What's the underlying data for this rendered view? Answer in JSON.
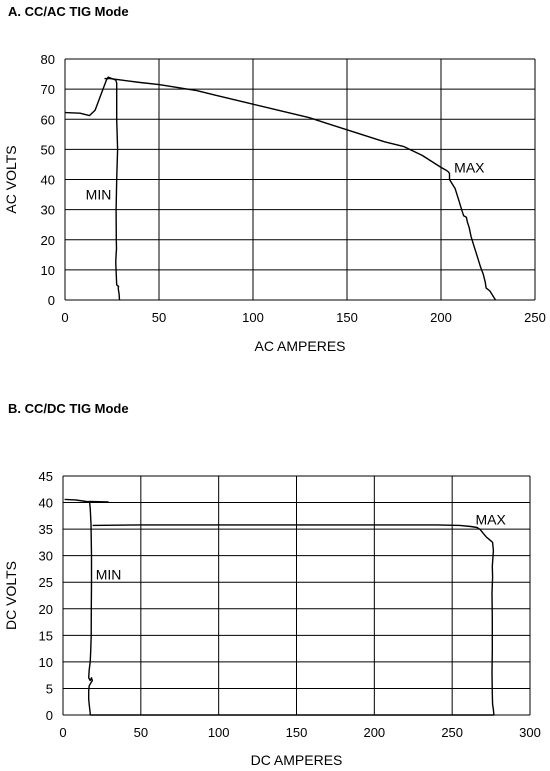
{
  "chart_data": [
    {
      "type": "line",
      "title": "A.  CC/AC TIG Mode",
      "xlabel": "AC AMPERES",
      "ylabel": "AC VOLTS",
      "xlim": [
        0,
        250
      ],
      "ylim": [
        0,
        80
      ],
      "xticks": [
        0,
        50,
        100,
        150,
        200,
        250
      ],
      "yticks": [
        0,
        10,
        20,
        30,
        40,
        50,
        60,
        70,
        80
      ],
      "grid": true,
      "annotations": [
        {
          "text": "MIN",
          "x": 11,
          "y": 35
        },
        {
          "text": "MAX",
          "x": 207,
          "y": 44
        }
      ],
      "series": [
        {
          "points": [
            [
              0,
              62.2
            ],
            [
              8,
              62
            ],
            [
              13,
              61.2
            ],
            [
              16,
              63
            ],
            [
              19,
              68
            ],
            [
              22,
              73
            ],
            [
              23,
              74
            ],
            [
              25,
              73.5
            ],
            [
              27,
              73
            ],
            [
              27.5,
              72
            ],
            [
              27.5,
              60
            ],
            [
              28,
              50
            ],
            [
              27.5,
              40
            ],
            [
              27.2,
              30
            ],
            [
              27.3,
              20
            ],
            [
              27.4,
              17
            ],
            [
              27.2,
              15
            ],
            [
              27,
              13
            ],
            [
              27,
              12
            ],
            [
              27.5,
              5
            ],
            [
              28.5,
              4.5
            ],
            [
              28.3,
              4
            ],
            [
              28.5,
              3
            ],
            [
              28.8,
              2
            ],
            [
              29,
              0
            ]
          ]
        },
        {
          "points": [
            [
              21,
              73.5
            ],
            [
              24,
              73.5
            ],
            [
              30,
              73
            ],
            [
              40,
              72.2
            ],
            [
              50,
              71.5
            ],
            [
              60,
              70.5
            ],
            [
              70,
              69.5
            ],
            [
              80,
              68
            ],
            [
              90,
              66.5
            ],
            [
              100,
              65
            ],
            [
              110,
              63.5
            ],
            [
              120,
              62
            ],
            [
              130,
              60.5
            ],
            [
              140,
              58.5
            ],
            [
              150,
              56.5
            ],
            [
              160,
              54.5
            ],
            [
              170,
              52.5
            ],
            [
              180,
              51
            ],
            [
              185,
              49.5
            ],
            [
              190,
              48
            ],
            [
              195,
              46
            ],
            [
              200,
              44
            ],
            [
              203,
              43
            ],
            [
              204,
              42.5
            ],
            [
              204.5,
              42
            ],
            [
              204.5,
              40
            ],
            [
              206,
              38.5
            ],
            [
              207.5,
              37
            ],
            [
              208.5,
              35
            ],
            [
              209.5,
              33
            ],
            [
              210.5,
              31
            ],
            [
              211.5,
              29
            ],
            [
              212,
              28
            ],
            [
              213.5,
              27.5
            ],
            [
              214,
              26
            ],
            [
              215,
              24
            ],
            [
              216,
              21
            ],
            [
              217.5,
              18
            ],
            [
              218.5,
              16
            ],
            [
              219.5,
              14
            ],
            [
              221,
              11
            ],
            [
              222.5,
              8.5
            ],
            [
              223.5,
              6
            ],
            [
              224,
              4
            ],
            [
              226,
              3
            ],
            [
              227.5,
              1.5
            ],
            [
              229,
              0
            ]
          ]
        }
      ]
    },
    {
      "type": "line",
      "title": "B.  CC/DC TIG  Mode",
      "xlabel": "DC AMPERES",
      "ylabel": "DC VOLTS",
      "xlim": [
        0,
        300
      ],
      "ylim": [
        0,
        45
      ],
      "xticks": [
        0,
        50,
        100,
        150,
        200,
        250,
        300
      ],
      "yticks": [
        0,
        5,
        10,
        15,
        20,
        25,
        30,
        35,
        40,
        45
      ],
      "grid": true,
      "annotations": [
        {
          "text": "MIN",
          "x": 21,
          "y": 26.5
        },
        {
          "text": "MAX",
          "x": 265,
          "y": 36.8
        }
      ],
      "series": [
        {
          "points": [
            [
              1,
              40.6
            ],
            [
              8,
              40.5
            ],
            [
              15,
              40.2
            ],
            [
              29,
              40.1
            ],
            [
              17,
              40.2
            ],
            [
              17.5,
              39
            ],
            [
              18,
              36
            ],
            [
              18.3,
              30
            ],
            [
              18.3,
              25
            ],
            [
              18.2,
              20
            ],
            [
              18.1,
              15
            ],
            [
              17.8,
              12
            ],
            [
              17.5,
              10
            ],
            [
              16.8,
              8.5
            ],
            [
              16.5,
              7
            ],
            [
              17.5,
              6.5
            ],
            [
              18.3,
              7
            ],
            [
              18.8,
              6.5
            ],
            [
              16.8,
              5.5
            ],
            [
              16.5,
              4.5
            ],
            [
              16.5,
              3
            ],
            [
              16.8,
              2
            ],
            [
              17.2,
              1
            ],
            [
              17.5,
              0.4
            ],
            [
              17.5,
              0
            ],
            [
              90,
              0
            ],
            [
              277,
              0
            ]
          ]
        },
        {
          "points": [
            [
              19,
              35.7
            ],
            [
              50,
              35.8
            ],
            [
              100,
              35.8
            ],
            [
              150,
              35.8
            ],
            [
              200,
              35.8
            ],
            [
              240,
              35.8
            ],
            [
              255,
              35.7
            ],
            [
              262,
              35.5
            ],
            [
              266,
              35.3
            ],
            [
              268,
              34.9
            ],
            [
              270,
              34.2
            ],
            [
              272,
              33.5
            ],
            [
              274,
              33
            ],
            [
              276,
              32.5
            ],
            [
              276.5,
              31
            ],
            [
              275.8,
              28
            ],
            [
              276,
              26
            ],
            [
              275.6,
              23
            ],
            [
              275.8,
              18
            ],
            [
              275.8,
              12
            ],
            [
              275.6,
              8
            ],
            [
              275.8,
              4
            ],
            [
              276,
              2
            ],
            [
              276.5,
              1
            ],
            [
              276.8,
              0
            ]
          ]
        }
      ]
    }
  ]
}
